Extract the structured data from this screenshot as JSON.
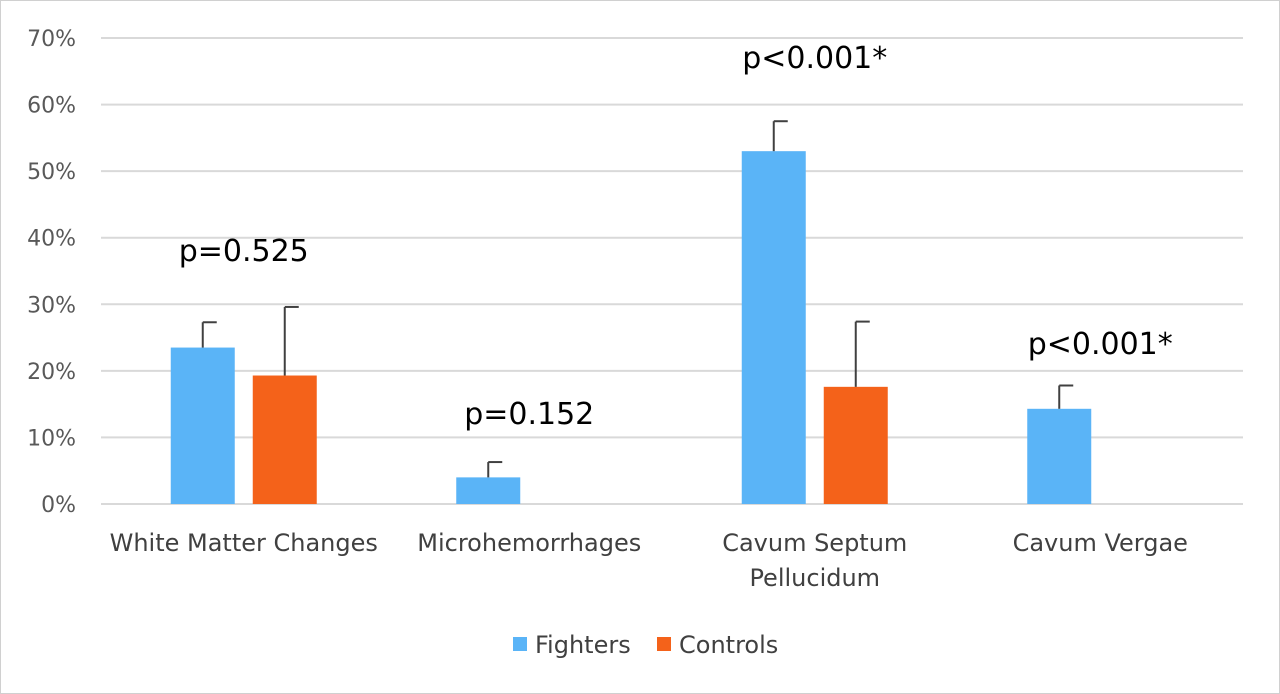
{
  "chart_data": {
    "type": "bar",
    "title": "",
    "xlabel": "",
    "ylabel": "",
    "ylim": [
      0,
      0.7
    ],
    "yticks": [
      0,
      0.1,
      0.2,
      0.3,
      0.4,
      0.5,
      0.6,
      0.7
    ],
    "ytick_labels": [
      "0%",
      "10%",
      "20%",
      "30%",
      "40%",
      "50%",
      "60%",
      "70%"
    ],
    "grid": true,
    "legend_position": "bottom",
    "categories": [
      [
        "White Matter Changes"
      ],
      [
        "Microhemorrhages"
      ],
      [
        "Cavum Septum",
        "Pellucidum"
      ],
      [
        "Cavum Vergae"
      ]
    ],
    "series": [
      {
        "name": "Fighters",
        "color": "#5ab4f7",
        "values": [
          0.235,
          0.04,
          0.53,
          0.143
        ],
        "error_upper": [
          0.038,
          0.023,
          0.045,
          0.035
        ]
      },
      {
        "name": "Controls",
        "color": "#f4621a",
        "values": [
          0.193,
          0,
          0.176,
          0
        ],
        "error_upper": [
          0.103,
          0,
          0.098,
          0
        ]
      }
    ],
    "annotations": [
      "p=0.525",
      "p=0.152",
      "p<0.001*",
      "p<0.001*"
    ],
    "annotation_values": [
      0.38,
      0.135,
      0.67,
      0.24
    ]
  }
}
